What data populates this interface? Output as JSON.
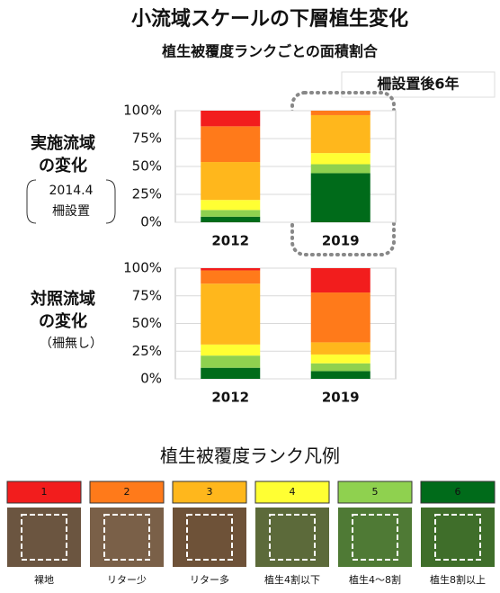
{
  "header": {
    "title": "小流域スケールの下層植生変化",
    "subtitle": "植生被覆度ランクごとの面積割合",
    "annotation": "柵設置後6年"
  },
  "chart_data": [
    {
      "type": "bar",
      "stacked": true,
      "label": [
        "実施流域",
        "の変化"
      ],
      "note": [
        "2014.4",
        "柵設置"
      ],
      "categories": [
        "2012",
        "2019"
      ],
      "series": [
        {
          "name": "6",
          "color": "#006b1a",
          "values": [
            5,
            44
          ]
        },
        {
          "name": "5",
          "color": "#8fd14f",
          "values": [
            6,
            8
          ]
        },
        {
          "name": "4",
          "color": "#ffff33",
          "values": [
            9,
            10
          ]
        },
        {
          "name": "3",
          "color": "#ffb71c",
          "values": [
            34,
            34
          ]
        },
        {
          "name": "2",
          "color": "#ff7a1a",
          "values": [
            32,
            4
          ]
        },
        {
          "name": "1",
          "color": "#f21d1d",
          "values": [
            14,
            0
          ]
        }
      ],
      "ylim": [
        0,
        100
      ],
      "yticks": [
        {
          "value": 0,
          "label": "0%"
        },
        {
          "value": 25,
          "label": "25%"
        },
        {
          "value": 50,
          "label": "50%"
        },
        {
          "value": 75,
          "label": "75%"
        },
        {
          "value": 100,
          "label": "100%"
        }
      ],
      "grid": true
    },
    {
      "type": "bar",
      "stacked": true,
      "label": [
        "対照流域",
        "の変化"
      ],
      "note": [
        "（柵無し）"
      ],
      "categories": [
        "2012",
        "2019"
      ],
      "series": [
        {
          "name": "6",
          "color": "#006b1a",
          "values": [
            10,
            7
          ]
        },
        {
          "name": "5",
          "color": "#8fd14f",
          "values": [
            11,
            7
          ]
        },
        {
          "name": "4",
          "color": "#ffff33",
          "values": [
            10,
            8
          ]
        },
        {
          "name": "3",
          "color": "#ffb71c",
          "values": [
            55,
            11
          ]
        },
        {
          "name": "2",
          "color": "#ff7a1a",
          "values": [
            12,
            45
          ]
        },
        {
          "name": "1",
          "color": "#f21d1d",
          "values": [
            2,
            22
          ]
        }
      ],
      "ylim": [
        0,
        100
      ],
      "yticks": [
        {
          "value": 0,
          "label": "0%"
        },
        {
          "value": 25,
          "label": "25%"
        },
        {
          "value": 50,
          "label": "50%"
        },
        {
          "value": 75,
          "label": "75%"
        },
        {
          "value": 100,
          "label": "100%"
        }
      ],
      "grid": true
    }
  ],
  "legend": {
    "title": "植生被覆度ランク凡例",
    "captions": [
      "裸地",
      "リター少",
      "リター多",
      "植生4割以下",
      "植生4～8割",
      "植生8割以上"
    ]
  }
}
